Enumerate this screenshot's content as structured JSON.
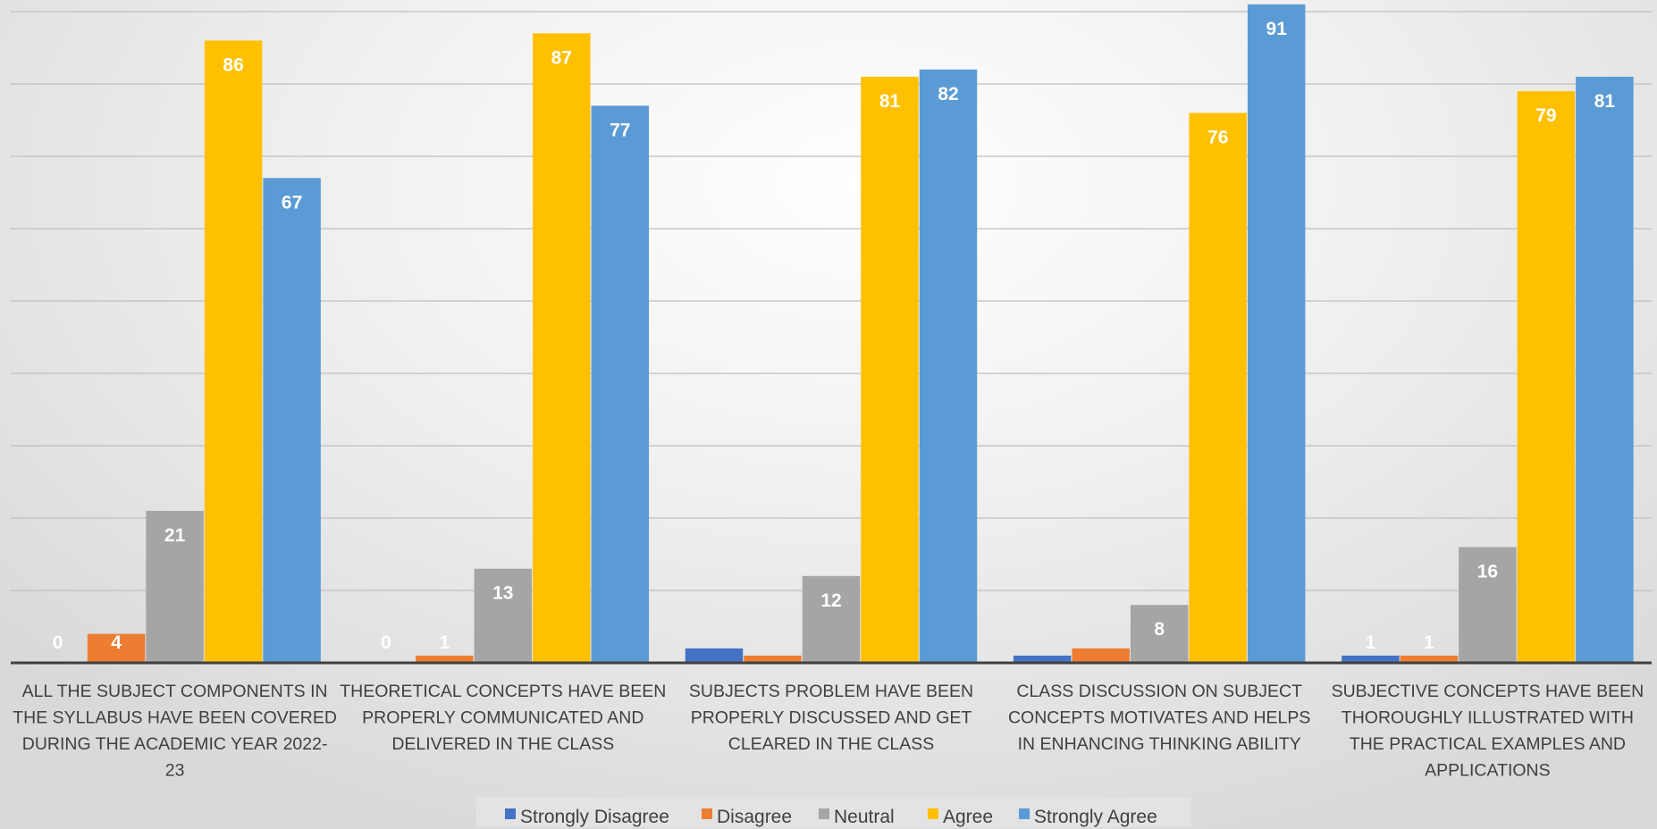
{
  "chart_data": {
    "type": "bar",
    "title": "",
    "xlabel": "",
    "ylabel": "",
    "ylim": [
      0,
      90
    ],
    "grid": true,
    "legend_position": "bottom",
    "categories": [
      "ALL THE SUBJECT COMPONENTS IN THE SYLLABUS HAVE BEEN COVERED DURING THE ACADEMIC YEAR 2022-23",
      "THEORETICAL CONCEPTS HAVE BEEN PROPERLY COMMUNICATED AND DELIVERED IN THE CLASS",
      "SUBJECTS PROBLEM HAVE BEEN PROPERLY DISCUSSED AND GET CLEARED IN THE CLASS",
      "CLASS DISCUSSION ON SUBJECT CONCEPTS MOTIVATES AND HELPS IN ENHANCING THINKING ABILITY",
      "SUBJECTIVE CONCEPTS HAVE BEEN THOROUGHLY ILLUSTRATED WITH THE PRACTICAL EXAMPLES AND APPLICATIONS"
    ],
    "category_lines": [
      [
        "ALL THE SUBJECT COMPONENTS IN",
        "THE SYLLABUS HAVE BEEN COVERED",
        "DURING THE ACADEMIC YEAR 2022-",
        "23"
      ],
      [
        "THEORETICAL CONCEPTS HAVE BEEN",
        "PROPERLY COMMUNICATED AND",
        "DELIVERED IN THE CLASS"
      ],
      [
        "SUBJECTS PROBLEM HAVE BEEN",
        "PROPERLY DISCUSSED AND GET",
        "CLEARED IN THE CLASS"
      ],
      [
        "CLASS DISCUSSION ON SUBJECT",
        "CONCEPTS MOTIVATES AND HELPS",
        "IN ENHANCING THINKING ABILITY"
      ],
      [
        "SUBJECTIVE CONCEPTS HAVE BEEN",
        "THOROUGHLY ILLUSTRATED WITH",
        "THE PRACTICAL EXAMPLES AND",
        "APPLICATIONS"
      ]
    ],
    "series": [
      {
        "name": "Strongly Disagree",
        "color": "#4472c4",
        "values": [
          0,
          0,
          2,
          1,
          1
        ]
      },
      {
        "name": "Disagree",
        "color": "#ed7d31",
        "values": [
          4,
          1,
          1,
          2,
          1
        ]
      },
      {
        "name": "Neutral",
        "color": "#a5a5a5",
        "values": [
          21,
          13,
          12,
          8,
          16
        ]
      },
      {
        "name": "Agree",
        "color": "#ffc000",
        "values": [
          86,
          87,
          81,
          76,
          79
        ]
      },
      {
        "name": "Strongly Agree",
        "color": "#5b9bd5",
        "values": [
          67,
          77,
          82,
          91,
          81
        ]
      }
    ],
    "data_labels": [
      [
        "0",
        "0",
        "",
        "",
        "1"
      ],
      [
        "4",
        "1",
        "",
        "",
        "1"
      ],
      [
        "21",
        "13",
        "12",
        "8",
        "16"
      ],
      [
        "86",
        "87",
        "81",
        "76",
        "79"
      ],
      [
        "67",
        "77",
        "82",
        "91",
        "81"
      ]
    ]
  }
}
